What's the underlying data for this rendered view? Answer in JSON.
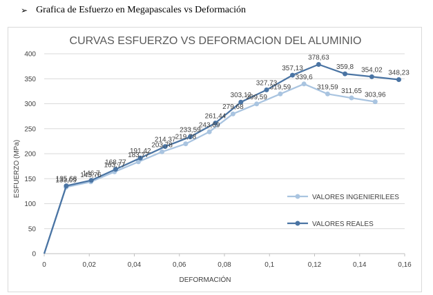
{
  "heading": {
    "bullet": "➢",
    "text": "Grafica de Esfuerzo en Megapascales  vs Deformación"
  },
  "chart_data": {
    "type": "line",
    "title": "CURVAS ESFUERZO VS DEFORMACION DEL ALUMINIO",
    "xlabel": "DEFORMACIÓN",
    "ylabel": "ESFUERZO (MPa)",
    "xlim": [
      0,
      0.16
    ],
    "ylim": [
      0,
      400
    ],
    "xticks": [
      "0",
      "0,02",
      "0,04",
      "0,06",
      "0,08",
      "0,1",
      "0,12",
      "0,14",
      "0,16"
    ],
    "yticks": [
      "0",
      "50",
      "100",
      "150",
      "200",
      "250",
      "300",
      "350",
      "400"
    ],
    "grid": "horizontal",
    "legend_position": "right",
    "series": [
      {
        "name": "VALORES INGENIERILEES",
        "color": "#a9c4e0",
        "x": [
          0,
          0.0097,
          0.0207,
          0.0312,
          0.0418,
          0.0523,
          0.0628,
          0.0733,
          0.0838,
          0.0943,
          0.1048,
          0.1153,
          0.1258,
          0.1364,
          0.1469
        ],
        "y": [
          0,
          133.09,
          143.76,
          163.77,
          183.77,
          203.78,
          219.78,
          243.69,
          279.68,
          299.59,
          319.59,
          339.6,
          319.59,
          311.65,
          303.96
        ],
        "labels": [
          "",
          "133,09",
          "143,76",
          "163,77",
          "183,77",
          "203,78",
          "219,78",
          "243,69",
          "279,68",
          "299,59",
          "319,59",
          "339,6",
          "319,59",
          "311,65",
          "303,96"
        ]
      },
      {
        "name": "VALORES REALES",
        "color": "#4a74a3",
        "x": [
          0,
          0.0098,
          0.0209,
          0.0317,
          0.0427,
          0.0537,
          0.0648,
          0.076,
          0.0873,
          0.0987,
          0.1102,
          0.1218,
          0.1335,
          0.1454,
          0.1574
        ],
        "y": [
          0,
          135.68,
          146.7,
          168.77,
          191.42,
          214.37,
          233.59,
          261.44,
          303.12,
          327.73,
          357.13,
          378.63,
          359.8,
          354.02,
          348.23
        ],
        "labels": [
          "",
          "135,68",
          "146,7",
          "168,77",
          "191,42",
          "214,37",
          "233,59",
          "261,44",
          "303,12",
          "327,73",
          "357,13",
          "378,63",
          "359,8",
          "354,02",
          "348,23"
        ]
      }
    ]
  }
}
